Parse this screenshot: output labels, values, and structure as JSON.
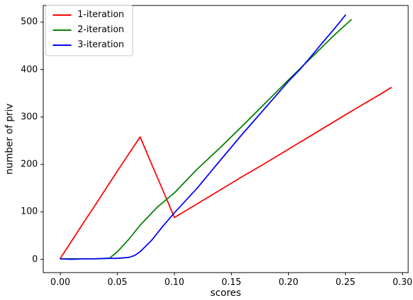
{
  "figure": {
    "background": "#ffffff",
    "axis_color": "#000000",
    "x_tick_labels": [
      "0.00",
      "0.05",
      "0.10",
      "0.15",
      "0.20",
      "0.25",
      "0.30"
    ],
    "y_tick_labels": [
      "0",
      "100",
      "200",
      "300",
      "400",
      "500"
    ]
  },
  "chart_data": {
    "type": "line",
    "title": "",
    "xlabel": "scores",
    "ylabel": "number of priv",
    "xlim": [
      -0.015,
      0.305
    ],
    "ylim": [
      -28,
      535
    ],
    "x_ticks": [
      0.0,
      0.05,
      0.1,
      0.15,
      0.2,
      0.25,
      0.3
    ],
    "y_ticks": [
      0,
      100,
      200,
      300,
      400,
      500
    ],
    "grid": false,
    "legend_position": "upper left",
    "series": [
      {
        "name": "1-iteration",
        "color": "#ff0000",
        "points": [
          [
            0.0,
            2
          ],
          [
            0.01,
            39
          ],
          [
            0.02,
            76
          ],
          [
            0.03,
            112
          ],
          [
            0.04,
            149
          ],
          [
            0.05,
            186
          ],
          [
            0.06,
            222
          ],
          [
            0.07,
            258
          ],
          [
            0.08,
            201
          ],
          [
            0.09,
            145
          ],
          [
            0.1,
            88
          ],
          [
            0.12,
            117
          ],
          [
            0.14,
            146
          ],
          [
            0.16,
            175
          ],
          [
            0.18,
            203
          ],
          [
            0.2,
            232
          ],
          [
            0.22,
            261
          ],
          [
            0.24,
            290
          ],
          [
            0.26,
            319
          ],
          [
            0.28,
            347
          ],
          [
            0.29,
            362
          ]
        ]
      },
      {
        "name": "2-iteration",
        "color": "#008000",
        "points": [
          [
            0.0,
            1
          ],
          [
            0.01,
            1
          ],
          [
            0.02,
            1
          ],
          [
            0.03,
            1
          ],
          [
            0.043,
            2
          ],
          [
            0.05,
            16
          ],
          [
            0.06,
            42
          ],
          [
            0.07,
            72
          ],
          [
            0.085,
            110
          ],
          [
            0.1,
            140
          ],
          [
            0.12,
            190
          ],
          [
            0.14,
            235
          ],
          [
            0.16,
            282
          ],
          [
            0.18,
            330
          ],
          [
            0.2,
            378
          ],
          [
            0.22,
            425
          ],
          [
            0.24,
            472
          ],
          [
            0.255,
            505
          ]
        ]
      },
      {
        "name": "3-iteration",
        "color": "#0000ff",
        "points": [
          [
            0.0,
            1
          ],
          [
            0.01,
            0
          ],
          [
            0.02,
            1
          ],
          [
            0.03,
            1
          ],
          [
            0.04,
            2
          ],
          [
            0.05,
            2
          ],
          [
            0.06,
            4
          ],
          [
            0.065,
            8
          ],
          [
            0.07,
            16
          ],
          [
            0.08,
            40
          ],
          [
            0.09,
            70
          ],
          [
            0.1,
            98
          ],
          [
            0.12,
            150
          ],
          [
            0.14,
            208
          ],
          [
            0.16,
            265
          ],
          [
            0.18,
            320
          ],
          [
            0.2,
            375
          ],
          [
            0.21,
            400
          ],
          [
            0.22,
            428
          ],
          [
            0.23,
            457
          ],
          [
            0.24,
            485
          ],
          [
            0.25,
            515
          ]
        ]
      }
    ]
  }
}
